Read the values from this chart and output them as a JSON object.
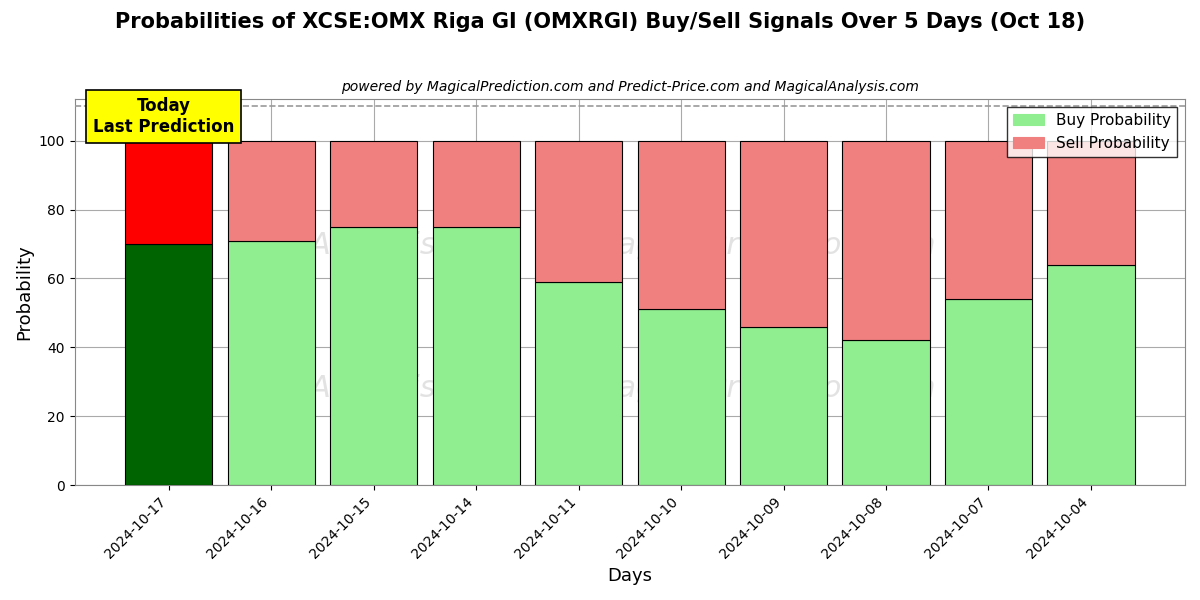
{
  "title": "Probabilities of XCSE:OMX Riga GI (OMXRGI) Buy/Sell Signals Over 5 Days (Oct 18)",
  "subtitle": "powered by MagicalPrediction.com and Predict-Price.com and MagicalAnalysis.com",
  "xlabel": "Days",
  "ylabel": "Probability",
  "dates": [
    "2024-10-17",
    "2024-10-16",
    "2024-10-15",
    "2024-10-14",
    "2024-10-11",
    "2024-10-10",
    "2024-10-09",
    "2024-10-08",
    "2024-10-07",
    "2024-10-04"
  ],
  "buy_values": [
    70,
    71,
    75,
    75,
    59,
    51,
    46,
    42,
    54,
    64
  ],
  "sell_values": [
    30,
    29,
    25,
    25,
    41,
    49,
    54,
    58,
    46,
    36
  ],
  "today_buy_color": "#006400",
  "today_sell_color": "#FF0000",
  "buy_color": "#90EE90",
  "sell_color": "#F08080",
  "bar_edgecolor": "#000000",
  "ylim": [
    0,
    112
  ],
  "yticks": [
    0,
    20,
    40,
    60,
    80,
    100
  ],
  "dashed_line_y": 110,
  "dashed_line_color": "#999999",
  "grid_color": "#AAAAAA",
  "bg_color": "#FFFFFF",
  "today_label_text": "Today\nLast Prediction",
  "today_label_bg": "#FFFF00",
  "today_label_fontsize": 12,
  "title_fontsize": 15,
  "subtitle_fontsize": 10,
  "axis_label_fontsize": 13,
  "tick_fontsize": 10,
  "legend_fontsize": 11,
  "watermark_color": "#D0D0D0",
  "watermark_fontsize": 22,
  "watermark_alpha": 0.6
}
